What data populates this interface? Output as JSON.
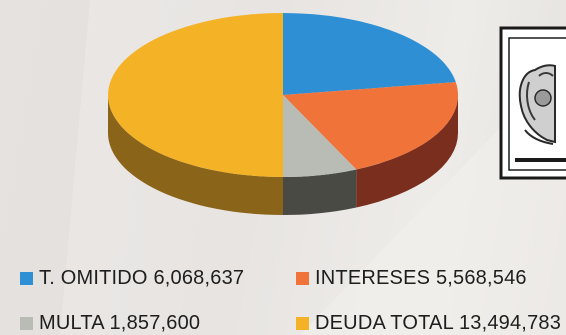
{
  "chart_data": {
    "type": "pie",
    "title": "",
    "style": "3d",
    "categories": [
      "T. OMITIDO",
      "INTERESES",
      "MULTA",
      "DEUDA TOTAL"
    ],
    "values": [
      6068637,
      5568546,
      1857600,
      13494783
    ],
    "colors": [
      "#2e8fd4",
      "#f0743a",
      "#b9bcb5",
      "#f4b227"
    ],
    "side_colors": [
      "#1d4f70",
      "#7a2f1e",
      "#4a4a44",
      "#8a6418"
    ],
    "legend": [
      {
        "label": "T. OMITIDO",
        "value_text": "6,068,637",
        "color": "#2e8fd4"
      },
      {
        "label": "INTERESES",
        "value_text": "5,568,546",
        "color": "#f0743a"
      },
      {
        "label": "MULTA",
        "value_text": "1,857,600",
        "color": "#b9bcb5"
      },
      {
        "label": "DEUDA TOTAL",
        "value_text": "13,494,783",
        "color": "#f4b227"
      }
    ],
    "legend_position": "bottom"
  },
  "seal": {
    "icon": "coat-of-arms-seal-icon"
  }
}
